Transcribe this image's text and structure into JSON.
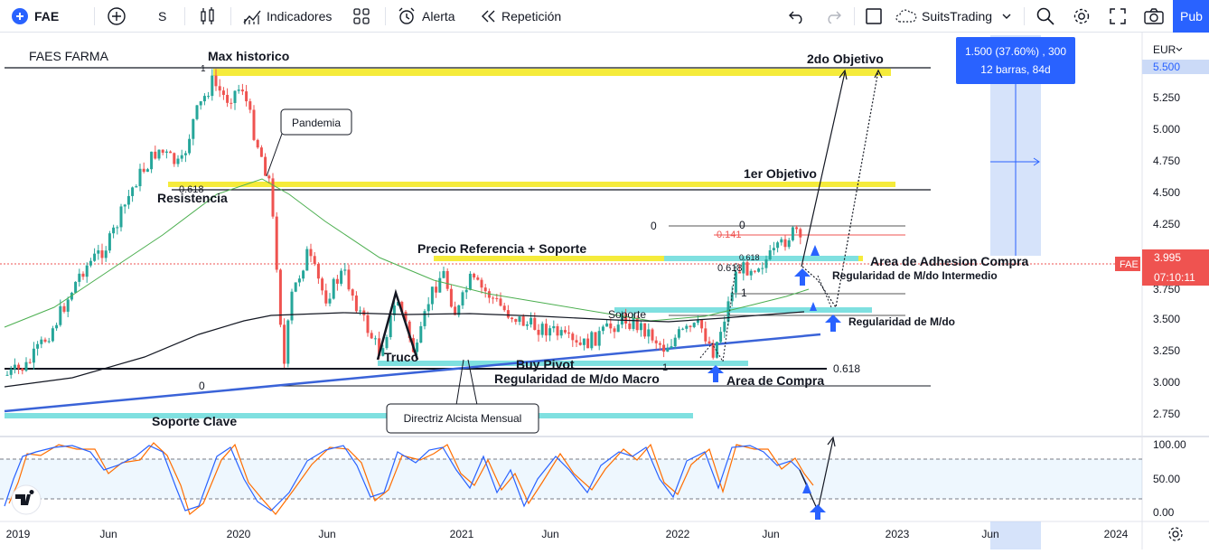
{
  "toolbar": {
    "symbol": "FAE",
    "interval": "S",
    "indicators_label": "Indicadores",
    "alert_label": "Alerta",
    "replay_label": "Repetición",
    "layout_name": "SuitsTrading",
    "publish_label": "Pub",
    "icons": [
      "plus-circle-icon",
      "candles-icon",
      "indicators-icon",
      "templates-icon",
      "alarm-clock-icon",
      "replay-icon",
      "undo-icon",
      "redo-icon",
      "layout-square-icon",
      "cloud-icon",
      "chevron-down-icon",
      "search-icon",
      "gear-icon",
      "fullscreen-icon",
      "camera-icon"
    ]
  },
  "chart": {
    "title": "FAES FARMA",
    "currency": "EUR",
    "last_price": "3.995",
    "ticker_badge": "FAE",
    "countdown": "07:10:11",
    "top_price_badge": "5.500",
    "measure_box": {
      "line1": "1.500 (37.60%) , 300",
      "line2": "12 barras, 84d"
    },
    "price_axis": [
      "5.250",
      "5.000",
      "4.750",
      "4.500",
      "4.250",
      "3.750",
      "3.500",
      "3.250",
      "3.000",
      "2.750"
    ],
    "osc_axis": [
      "100.00",
      "50.00",
      "0.00"
    ],
    "time_axis": [
      "2019",
      "Jun",
      "2020",
      "Jun",
      "2021",
      "Jun",
      "2022",
      "Jun",
      "2023",
      "Jun",
      "2024"
    ],
    "annotations": {
      "max_historico": "Max historico",
      "objetivo2": "2do Objetivo",
      "pandemia": "Pandemia",
      "resistencia": "Resistencia",
      "fib_0618_left": "0.618",
      "objetivo1": "1er Objetivo",
      "precio_ref": "Precio Referencia + Soporte",
      "area_adhesion": "Area de Adhesion Compra",
      "reg_intermedio": "Regularidad de M/do Intermedio",
      "reg_md": "Regularidad de M/do",
      "truco": "Truco",
      "buy_pivot": "Buy Pivot",
      "reg_macro": "Regularidad de M/do Macro",
      "area_compra": "Area de Compra",
      "soporte_clave": "Soporte Clave",
      "directriz": "Directriz Alcista Mensual",
      "soporte": "Soporte",
      "fib_0": "0",
      "fib_0141": "0.141",
      "fib_0618": "0.618",
      "fib_1": "1",
      "fib_0_right": "0",
      "fib_0_left": "0",
      "fib_1_top": "1",
      "fib_1_bottom": "1",
      "fib_0618_bottom": "0.618",
      "fib_0618_mid": "0.618"
    },
    "colors": {
      "up": "#26a69a",
      "down": "#ef5350",
      "zone_yellow": "#f5eb3b",
      "zone_cyan": "#7fe0e0",
      "trend_blue": "#2962ff",
      "ma_green": "#4caf50",
      "ma_black": "#131722",
      "stoch_k": "#2962ff",
      "stoch_d": "#ff6d00",
      "accent": "#2962ff"
    }
  }
}
